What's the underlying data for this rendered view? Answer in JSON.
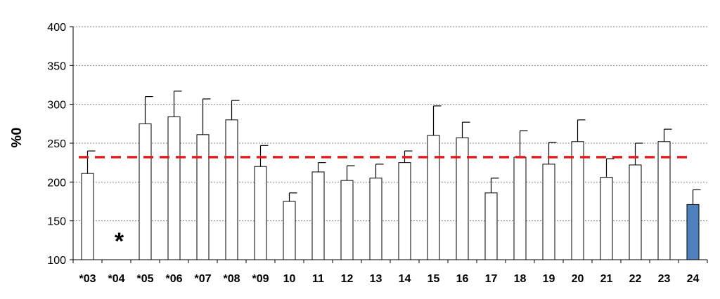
{
  "chart_data": {
    "type": "bar",
    "title": "",
    "xlabel": "",
    "ylabel": "%0",
    "ylim": [
      100,
      400
    ],
    "yticks": [
      100,
      150,
      200,
      250,
      300,
      350,
      400
    ],
    "grid": true,
    "categories": [
      "*03",
      "*04",
      "*05",
      "*06",
      "*07",
      "*08",
      "*09",
      "10",
      "11",
      "12",
      "13",
      "14",
      "15",
      "16",
      "17",
      "18",
      "19",
      "20",
      "21",
      "22",
      "23",
      "24"
    ],
    "values": [
      211,
      null,
      275,
      284,
      261,
      280,
      220,
      175,
      213,
      202,
      205,
      225,
      260,
      257,
      186,
      232,
      223,
      252,
      206,
      222,
      252,
      171
    ],
    "error_plus": [
      29,
      null,
      35,
      33,
      46,
      25,
      27,
      11,
      12,
      19,
      18,
      15,
      38,
      20,
      19,
      34,
      28,
      28,
      24,
      28,
      16,
      19
    ],
    "reference_line": 232,
    "missing_marker": {
      "category": "*04",
      "symbol": "*"
    },
    "colors": {
      "bar_fill": "#ffffff",
      "bar_stroke": "#000000",
      "highlight_fill": "#4f81bd",
      "highlight_category": "24",
      "reference_line": "#e02020",
      "grid": "#808080"
    }
  }
}
